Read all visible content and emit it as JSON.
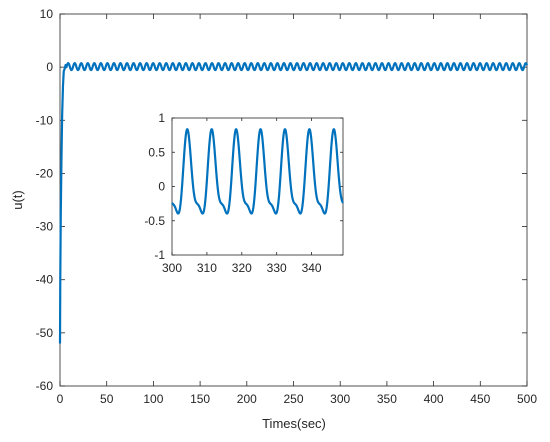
{
  "chart_data": [
    {
      "type": "line",
      "title": "",
      "xlabel": "Times(sec)",
      "ylabel": "u(t)",
      "xlim": [
        0,
        500
      ],
      "ylim": [
        -60,
        10
      ],
      "xticks": [
        0,
        50,
        100,
        150,
        200,
        250,
        300,
        350,
        400,
        450,
        500
      ],
      "yticks": [
        -60,
        -50,
        -40,
        -30,
        -20,
        -10,
        0,
        10
      ],
      "grid": false,
      "line_color": "#0072BD",
      "series": [
        {
          "transient": {
            "t": [
              0,
              0.3,
              0.8,
              1.5,
              2.3,
              3.2,
              4.0,
              5.0,
              6.0,
              7.0
            ],
            "u": [
              -52,
              -40,
              -28,
              -18,
              -9,
              -3.5,
              -0.8,
              -0.3,
              0.4,
              0.0
            ]
          },
          "steady_state": {
            "mean": 0.1,
            "amplitude": 0.65,
            "period": 7
          }
        }
      ]
    },
    {
      "type": "line",
      "role": "inset",
      "xlim": [
        300,
        349
      ],
      "ylim": [
        -1,
        1
      ],
      "xticks": [
        300,
        310,
        320,
        330,
        340
      ],
      "yticks": [
        -1,
        -0.5,
        0,
        0.5,
        1
      ],
      "ytick_labels": [
        "-1",
        "-0.5",
        "0",
        "0.5",
        "1"
      ],
      "grid": false,
      "line_color": "#0072BD",
      "series": [
        {
          "period": 7,
          "peak_time": 304.5,
          "max": 0.75,
          "min": -0.58,
          "shoulder": -0.38
        }
      ]
    }
  ]
}
